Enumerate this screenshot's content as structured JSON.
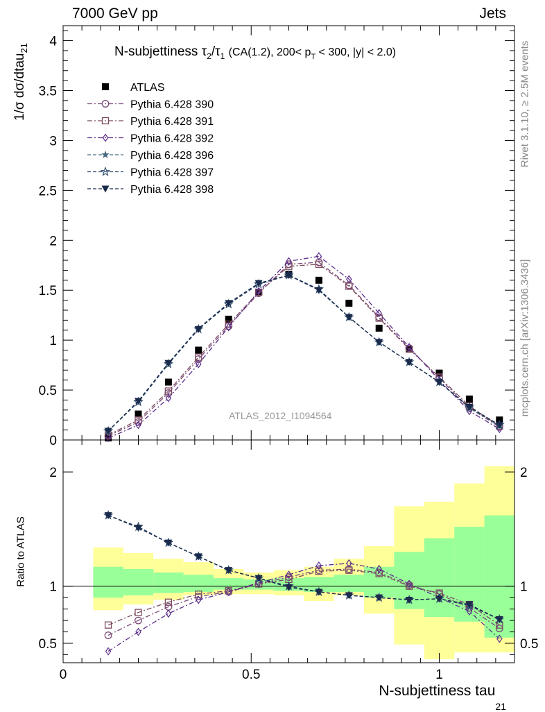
{
  "header": {
    "left": "7000 GeV pp",
    "right": "Jets"
  },
  "side_labels": {
    "rivet": "Rivet 3.1.10, ≥ 2.5M events",
    "mcplots": "mcplots.cern.ch [arXiv:1306.3436]"
  },
  "watermark": "ATLAS_2012_I1094564",
  "colors": {
    "data": "#000000",
    "s390": "#7b4a78",
    "s391": "#7b4a5e",
    "s392": "#5a2d8a",
    "s396": "#4a6a82",
    "s397": "#2e4a6e",
    "s398": "#1a2a4a",
    "band_outer": "#ffff99",
    "band_inner": "#99ff99"
  },
  "chart_data": [
    {
      "type": "scatter",
      "title": "N-subjettiness τ₂/τ₁ (CA(1.2), 200< p_T < 300, |y| < 2.0)",
      "title_parts": {
        "main": "N-subjettiness",
        "tau": "τ",
        "sub2": "2",
        "sub1": "1",
        "cond1": "(CA(1.2), 200< p",
        "subT": "T",
        "cond2": " < 300, |y| < 2.0)"
      },
      "ylabel": "1/σ dσ/dtau",
      "ylabel_sub": "21",
      "xlim": [
        0,
        1.2
      ],
      "ylim": [
        0,
        4.15
      ],
      "yticks": [
        0,
        0.5,
        1,
        1.5,
        2,
        2.5,
        3,
        3.5,
        4
      ],
      "ytick_labels": [
        "0",
        "0.5",
        "1",
        "1.5",
        "2",
        "2.5",
        "3",
        "3.5",
        "4"
      ],
      "x": [
        0.12,
        0.2,
        0.28,
        0.36,
        0.44,
        0.52,
        0.6,
        0.68,
        0.76,
        0.84,
        0.92,
        1.0,
        1.08,
        1.16
      ],
      "legend": {
        "position": "top-left"
      },
      "series": [
        {
          "name": "ATLAS",
          "key": "data",
          "marker": "square-filled",
          "line": "none",
          "values": [
            0.02,
            0.26,
            0.58,
            0.9,
            1.21,
            1.48,
            1.66,
            1.6,
            1.37,
            1.12,
            0.91,
            0.67,
            0.41,
            0.2
          ]
        },
        {
          "name": "Pythia 6.428 390",
          "key": "s390",
          "marker": "circle-open",
          "line": "dashdot",
          "values": [
            0.04,
            0.18,
            0.47,
            0.81,
            1.14,
            1.47,
            1.76,
            1.78,
            1.55,
            1.23,
            0.92,
            0.62,
            0.32,
            0.13
          ]
        },
        {
          "name": "Pythia 6.428 391",
          "key": "s391",
          "marker": "square-open",
          "line": "dashdot",
          "values": [
            0.05,
            0.2,
            0.49,
            0.83,
            1.16,
            1.48,
            1.74,
            1.76,
            1.54,
            1.22,
            0.91,
            0.63,
            0.34,
            0.14
          ]
        },
        {
          "name": "Pythia 6.428 392",
          "key": "s392",
          "marker": "diamond-open",
          "line": "dashdot",
          "values": [
            0.02,
            0.15,
            0.42,
            0.76,
            1.13,
            1.49,
            1.79,
            1.84,
            1.61,
            1.27,
            0.93,
            0.6,
            0.29,
            0.11
          ]
        },
        {
          "name": "Pythia 6.428 396",
          "key": "s396",
          "marker": "star-filled",
          "line": "dashed",
          "values": [
            0.09,
            0.39,
            0.77,
            1.12,
            1.37,
            1.57,
            1.65,
            1.51,
            1.23,
            0.98,
            0.78,
            0.58,
            0.32,
            0.14
          ]
        },
        {
          "name": "Pythia 6.428 397",
          "key": "s397",
          "marker": "star-open",
          "line": "dashed",
          "values": [
            0.09,
            0.38,
            0.76,
            1.11,
            1.36,
            1.56,
            1.65,
            1.51,
            1.23,
            0.98,
            0.78,
            0.58,
            0.33,
            0.15
          ]
        },
        {
          "name": "Pythia 6.428 398",
          "key": "s398",
          "marker": "triangle-down-filled",
          "line": "dashed",
          "values": [
            0.09,
            0.39,
            0.77,
            1.11,
            1.37,
            1.57,
            1.65,
            1.5,
            1.23,
            0.98,
            0.78,
            0.58,
            0.33,
            0.15
          ]
        }
      ]
    },
    {
      "type": "scatter",
      "ylabel": "Ratio to ATLAS",
      "xlabel": "N-subjettiness tau",
      "xlabel_sub": "21",
      "xlim": [
        0,
        1.2
      ],
      "ylim": [
        0.33,
        2.28
      ],
      "xticks": [
        0,
        0.5,
        1
      ],
      "xtick_labels": [
        "0",
        "0.5",
        "1"
      ],
      "yticks": [
        0.5,
        1,
        2
      ],
      "ytick_labels": [
        "0.5",
        "1",
        "2"
      ],
      "reference_line": 1,
      "x": [
        0.12,
        0.2,
        0.28,
        0.36,
        0.44,
        0.52,
        0.6,
        0.68,
        0.76,
        0.84,
        0.92,
        1.0,
        1.08,
        1.16
      ],
      "bands": {
        "edges": [
          0.08,
          0.16,
          0.24,
          0.32,
          0.4,
          0.48,
          0.56,
          0.64,
          0.72,
          0.8,
          0.88,
          0.96,
          1.04,
          1.12,
          1.2
        ],
        "outer_lo": [
          0.79,
          0.84,
          0.88,
          0.92,
          0.93,
          0.93,
          0.92,
          0.87,
          0.92,
          0.76,
          0.49,
          0.36,
          0.42,
          0.42
        ],
        "outer_hi": [
          1.34,
          1.29,
          1.24,
          1.21,
          1.15,
          1.12,
          1.14,
          1.17,
          1.24,
          1.35,
          1.7,
          1.74,
          1.9,
          2.05
        ],
        "inner_lo": [
          0.9,
          0.92,
          0.94,
          0.95,
          0.97,
          0.97,
          0.96,
          0.95,
          0.95,
          0.9,
          0.8,
          0.73,
          0.69,
          0.55
        ],
        "inner_hi": [
          1.17,
          1.15,
          1.12,
          1.1,
          1.07,
          1.06,
          1.07,
          1.08,
          1.1,
          1.17,
          1.3,
          1.42,
          1.52,
          1.62
        ]
      },
      "series": [
        {
          "name": "Pythia 6.428 390",
          "key": "s390",
          "marker": "circle-open",
          "line": "dashdot",
          "values": [
            0.57,
            0.7,
            0.82,
            0.91,
            0.95,
            1.02,
            1.08,
            1.14,
            1.15,
            1.12,
            1.01,
            0.93,
            0.81,
            0.63
          ]
        },
        {
          "name": "Pythia 6.428 391",
          "key": "s391",
          "marker": "square-open",
          "line": "dashdot",
          "values": [
            0.66,
            0.77,
            0.86,
            0.93,
            0.96,
            1.02,
            1.06,
            1.13,
            1.14,
            1.11,
            1.0,
            0.94,
            0.84,
            0.66
          ]
        },
        {
          "name": "Pythia 6.428 392",
          "key": "s392",
          "marker": "diamond-open",
          "line": "dashdot",
          "values": [
            0.43,
            0.6,
            0.76,
            0.88,
            0.95,
            1.03,
            1.1,
            1.18,
            1.2,
            1.15,
            1.02,
            0.9,
            0.78,
            0.54
          ]
        },
        {
          "name": "Pythia 6.428 396",
          "key": "s396",
          "marker": "star-filled",
          "line": "dashed",
          "values": [
            1.62,
            1.52,
            1.38,
            1.26,
            1.14,
            1.07,
            1.0,
            0.95,
            0.92,
            0.9,
            0.88,
            0.89,
            0.83,
            0.71
          ]
        },
        {
          "name": "Pythia 6.428 397",
          "key": "s397",
          "marker": "star-open",
          "line": "dashed",
          "values": [
            1.62,
            1.52,
            1.38,
            1.26,
            1.14,
            1.07,
            1.0,
            0.95,
            0.92,
            0.9,
            0.88,
            0.89,
            0.83,
            0.71
          ]
        },
        {
          "name": "Pythia 6.428 398",
          "key": "s398",
          "marker": "triangle-down-filled",
          "line": "dashed",
          "values": [
            1.62,
            1.51,
            1.38,
            1.26,
            1.14,
            1.07,
            0.99,
            0.95,
            0.92,
            0.9,
            0.88,
            0.89,
            0.84,
            0.71
          ]
        }
      ]
    }
  ]
}
